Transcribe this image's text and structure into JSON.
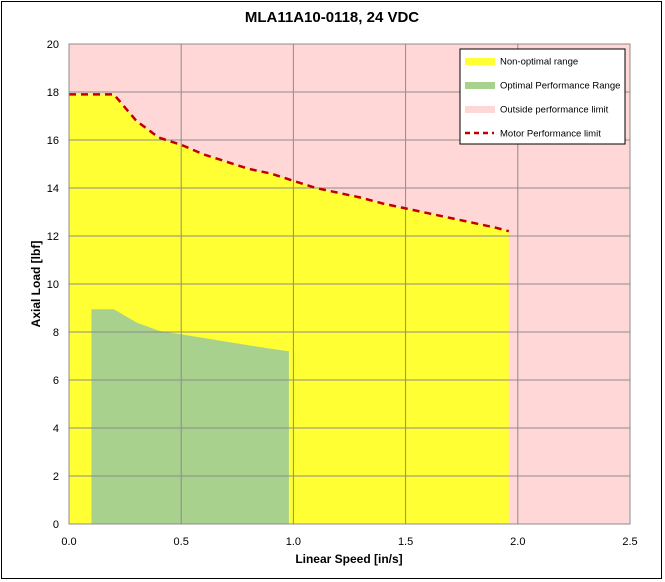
{
  "chart_data": {
    "type": "area",
    "title": "MLA11A10-0118, 24 VDC",
    "xlabel": "Linear Speed [in/s]",
    "ylabel": "Axial Load [lbf]",
    "xlim": [
      0,
      2.5
    ],
    "ylim": [
      0,
      20
    ],
    "xticks": [
      "0.0",
      "0.5",
      "1.0",
      "1.5",
      "2.0",
      "2.5"
    ],
    "yticks": [
      "0",
      "2",
      "4",
      "6",
      "8",
      "10",
      "12",
      "14",
      "16",
      "18",
      "20"
    ],
    "grid": true,
    "legend_position": "top-right",
    "series": [
      {
        "name": "Non-optimal range",
        "kind": "area",
        "color": "#ffff33",
        "x": [
          0.0,
          0.2,
          0.3,
          0.4,
          0.5,
          0.6,
          0.7,
          0.8,
          0.9,
          1.0,
          1.1,
          1.2,
          1.3,
          1.4,
          1.5,
          1.6,
          1.7,
          1.8,
          1.9,
          1.96
        ],
        "y": [
          17.9,
          17.9,
          16.8,
          16.1,
          15.8,
          15.4,
          15.1,
          14.8,
          14.6,
          14.3,
          14.0,
          13.8,
          13.6,
          13.35,
          13.15,
          12.95,
          12.75,
          12.55,
          12.35,
          12.2
        ]
      },
      {
        "name": "Optimal Performance Range",
        "kind": "area",
        "color": "#a9d18e",
        "x": [
          0.1,
          0.2,
          0.3,
          0.4,
          0.5,
          0.6,
          0.7,
          0.8,
          0.9,
          0.98
        ],
        "y": [
          8.95,
          8.95,
          8.4,
          8.05,
          7.9,
          7.75,
          7.6,
          7.45,
          7.3,
          7.2
        ]
      },
      {
        "name": "Outside performance limit",
        "kind": "background",
        "color": "#ffd7d7"
      },
      {
        "name": "Motor Performance limit",
        "kind": "dashed-line",
        "color": "#c00000",
        "x": [
          0.0,
          0.2,
          0.3,
          0.4,
          0.5,
          0.6,
          0.7,
          0.8,
          0.9,
          1.0,
          1.1,
          1.2,
          1.3,
          1.4,
          1.5,
          1.6,
          1.7,
          1.8,
          1.9,
          1.96
        ],
        "y": [
          17.9,
          17.9,
          16.8,
          16.1,
          15.8,
          15.4,
          15.1,
          14.8,
          14.6,
          14.3,
          14.0,
          13.8,
          13.6,
          13.35,
          13.15,
          12.95,
          12.75,
          12.55,
          12.35,
          12.2
        ]
      }
    ]
  }
}
